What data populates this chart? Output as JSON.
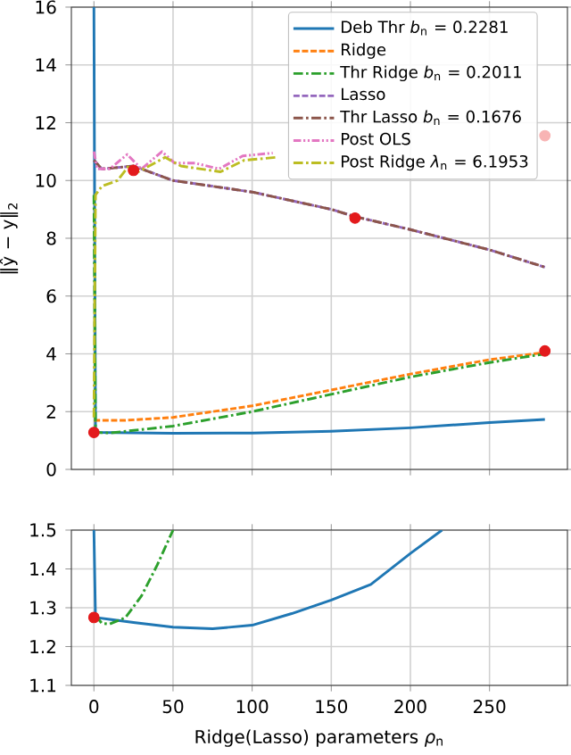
{
  "chart_data": [
    {
      "type": "line",
      "ylabel": "‖ŷ − y‖$_{2}$",
      "xlim": [
        -14.25,
        299.25
      ],
      "ylim": [
        0,
        16
      ],
      "xticks": [
        0,
        50,
        100,
        150,
        200,
        250
      ],
      "yticks": [
        0,
        2,
        4,
        6,
        8,
        10,
        12,
        14,
        16
      ],
      "tick_labels": "y",
      "grid": true,
      "legend": "top right",
      "series": [
        {
          "name": "Deb Thr *b*$_{n}$ = 0.2281",
          "color": "#1f77b4",
          "line_style": "solid",
          "x": [
            0,
            1,
            50,
            100,
            150,
            200,
            250,
            285
          ],
          "values": [
            16,
            1.28,
            1.25,
            1.26,
            1.32,
            1.44,
            1.62,
            1.73
          ]
        },
        {
          "name": "Ridge",
          "color": "#ff7f0e",
          "line_style": "dashed",
          "x": [
            0,
            20,
            50,
            100,
            150,
            200,
            250,
            285
          ],
          "values": [
            1.7,
            1.7,
            1.8,
            2.2,
            2.75,
            3.3,
            3.8,
            4.05
          ]
        },
        {
          "name": "Thr Ridge *b*$_{n}$ = 0.2011",
          "color": "#2ca02c",
          "line_style": "dashdot",
          "x": [
            0,
            1,
            10,
            50,
            100,
            150,
            200,
            250,
            285
          ],
          "values": [
            9.5,
            1.28,
            1.26,
            1.5,
            2.0,
            2.6,
            3.2,
            3.7,
            4.0
          ]
        },
        {
          "name": "Lasso",
          "color": "#9467bd",
          "line_style": "dashed",
          "x": [
            0,
            5,
            25,
            50,
            100,
            150,
            165,
            200,
            250,
            285
          ],
          "values": [
            10.7,
            10.4,
            10.5,
            10.0,
            9.6,
            9.0,
            8.75,
            8.3,
            7.6,
            7.0
          ]
        },
        {
          "name": "Thr Lasso *b*$_{n}$ = 0.1676",
          "color": "#8c564b",
          "line_style": "dashdot",
          "x": [
            0,
            5,
            25,
            50,
            100,
            150,
            165,
            200,
            250,
            285
          ],
          "values": [
            10.7,
            10.4,
            10.5,
            10.0,
            9.6,
            9.0,
            8.75,
            8.3,
            7.6,
            7.0
          ]
        },
        {
          "name": "Post OLS",
          "color": "#e377c2",
          "line_style": "dashdotdot",
          "x": [
            0,
            2,
            10,
            21,
            30,
            43,
            51,
            64,
            79,
            94,
            113
          ],
          "values": [
            11.0,
            10.4,
            10.4,
            10.9,
            10.4,
            11.0,
            10.6,
            10.6,
            10.4,
            10.85,
            10.95
          ]
        },
        {
          "name": "Post Ridge *λ*$_{n}$ = 6.1953",
          "color": "#bcbd22",
          "line_style": "dashdot",
          "x": [
            0,
            1,
            5,
            15,
            22,
            28,
            45,
            55,
            80,
            95,
            115
          ],
          "values": [
            1.8,
            9.5,
            9.8,
            10.0,
            10.5,
            10.3,
            10.8,
            10.5,
            10.3,
            10.7,
            10.8
          ]
        },
        {
          "type": "scatter",
          "marker": "circle",
          "x": [
            0,
            25,
            165,
            285,
            285
          ],
          "values": [
            1.28,
            10.35,
            8.7,
            4.1,
            11.55
          ],
          "colors": [
            "#e31a1c",
            "#e31a1c",
            "#e31a1c",
            "#e31a1c",
            "#f8b4b4"
          ]
        }
      ]
    },
    {
      "type": "line",
      "xlabel": "Ridge(Lasso) parameters *ρ*$_{n}$",
      "xlim": [
        -14.25,
        299.25
      ],
      "ylim": [
        1.1,
        1.5
      ],
      "xticks": [
        0,
        50,
        100,
        150,
        200,
        250
      ],
      "yticks": [
        1.1,
        1.2,
        1.3,
        1.4,
        1.5
      ],
      "grid": true,
      "series": [
        {
          "color": "#1f77b4",
          "line_style": "solid",
          "x": [
            0,
            1,
            10,
            25,
            50,
            75,
            100,
            125,
            150,
            175,
            200,
            220
          ],
          "values": [
            1.5,
            1.275,
            1.27,
            1.262,
            1.25,
            1.246,
            1.255,
            1.285,
            1.32,
            1.36,
            1.44,
            1.5
          ]
        },
        {
          "color": "#2ca02c",
          "line_style": "dashdot",
          "x": [
            1,
            5,
            10,
            20,
            30,
            40,
            50
          ],
          "values": [
            1.28,
            1.26,
            1.258,
            1.275,
            1.33,
            1.41,
            1.5
          ]
        },
        {
          "type": "scatter",
          "marker": "circle",
          "x": [
            0
          ],
          "values": [
            1.275
          ],
          "colors": [
            "#e31a1c"
          ]
        }
      ]
    }
  ]
}
